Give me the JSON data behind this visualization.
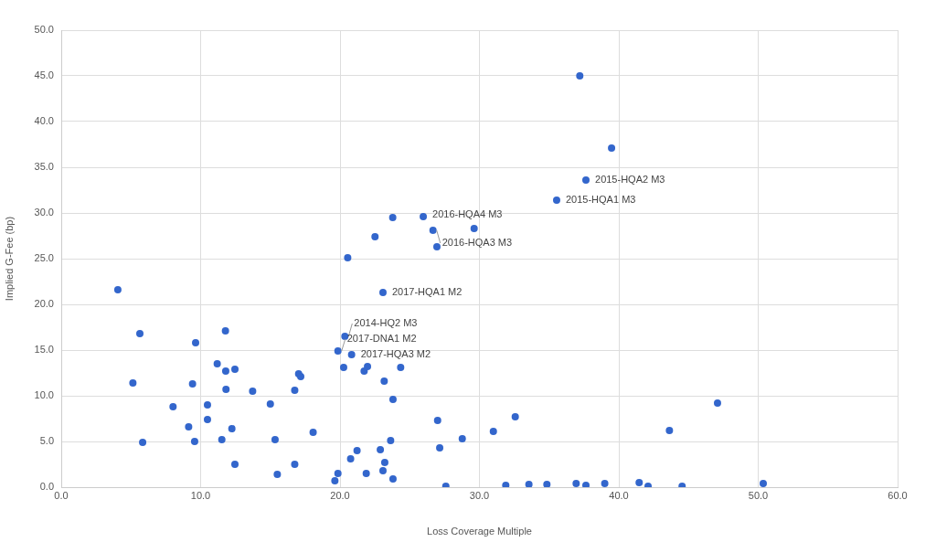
{
  "chart_data": {
    "type": "scatter",
    "xlabel": "Loss Coverage Multiple",
    "ylabel": "Implied G-Fee (bp)",
    "xlim": [
      0,
      60
    ],
    "ylim": [
      0,
      50
    ],
    "xticks": [
      {
        "value": 0,
        "label": "0.0"
      },
      {
        "value": 10,
        "label": "10.0"
      },
      {
        "value": 20,
        "label": "20.0"
      },
      {
        "value": 30,
        "label": "30.0"
      },
      {
        "value": 40,
        "label": "40.0"
      },
      {
        "value": 50,
        "label": "50.0"
      },
      {
        "value": 60,
        "label": "60.0"
      }
    ],
    "yticks": [
      {
        "value": 0,
        "label": "0.0"
      },
      {
        "value": 5,
        "label": "5.0"
      },
      {
        "value": 10,
        "label": "10.0"
      },
      {
        "value": 15,
        "label": "15.0"
      },
      {
        "value": 20,
        "label": "20.0"
      },
      {
        "value": 25,
        "label": "25.0"
      },
      {
        "value": 30,
        "label": "30.0"
      },
      {
        "value": 35,
        "label": "35.0"
      },
      {
        "value": 40,
        "label": "40.0"
      },
      {
        "value": 45,
        "label": "45.0"
      },
      {
        "value": 50,
        "label": "50.0"
      }
    ],
    "grid": true,
    "legend": false,
    "marker": "circle",
    "series": [
      {
        "color": "#3366cc",
        "x": [
          4.06,
          5.64,
          11.78,
          9.64,
          11.19,
          11.8,
          12.46,
          17.03,
          17.18,
          5.14,
          9.42,
          11.82,
          13.73,
          16.75,
          8.02,
          10.49,
          15.0,
          10.49,
          9.14,
          12.24,
          18.07,
          5.84,
          9.57,
          11.52,
          15.34,
          12.46,
          16.75,
          15.5,
          20.35,
          19.85,
          20.83,
          20.26,
          21.73,
          21.97,
          24.35,
          23.17,
          23.8,
          27.0,
          31.0,
          32.57,
          28.77,
          27.15,
          23.63,
          21.22,
          22.89,
          20.76,
          23.21,
          19.85,
          21.88,
          23.08,
          19.63,
          23.8,
          27.59,
          31.89,
          33.55,
          34.84,
          36.94,
          37.64,
          38.99,
          41.46,
          42.1,
          43.63,
          44.54,
          47.08,
          50.36,
          39.48,
          37.64,
          35.54,
          23.78,
          25.97,
          22.51,
          26.67,
          26.95,
          29.62,
          20.55,
          23.08,
          37.2
        ],
        "values": [
          21.6,
          16.8,
          17.1,
          15.8,
          13.5,
          12.7,
          12.9,
          12.4,
          12.1,
          11.4,
          11.3,
          10.7,
          10.5,
          10.6,
          8.8,
          9.0,
          9.1,
          7.4,
          6.6,
          6.4,
          6.0,
          4.9,
          5.0,
          5.2,
          5.2,
          2.5,
          2.5,
          1.4,
          16.5,
          14.9,
          14.5,
          13.1,
          12.7,
          13.2,
          13.1,
          11.6,
          9.6,
          7.3,
          6.1,
          7.7,
          5.3,
          4.3,
          5.1,
          4.0,
          4.1,
          3.1,
          2.7,
          1.5,
          1.5,
          1.8,
          0.7,
          0.9,
          0.1,
          0.2,
          0.3,
          0.3,
          0.4,
          0.2,
          0.4,
          0.5,
          0.1,
          6.2,
          0.1,
          9.2,
          0.4,
          37.1,
          33.6,
          31.4,
          29.5,
          29.6,
          27.4,
          28.1,
          26.3,
          28.3,
          25.1,
          21.3,
          45.0
        ]
      }
    ],
    "annotations": [
      {
        "text": "2015-HQA2 M3",
        "x": 37.64,
        "y": 33.6
      },
      {
        "text": "2015-HQA1 M3",
        "x": 35.54,
        "y": 31.4
      },
      {
        "text": "2016-HQA4 M3",
        "x": 25.97,
        "y": 29.6
      },
      {
        "text": "2016-HQA3 M3",
        "x": 26.67,
        "y": 28.1
      },
      {
        "text": "2017-HQA1 M2",
        "x": 23.08,
        "y": 21.3
      },
      {
        "text": "2014-HQ2 M3",
        "x": 20.35,
        "y": 16.5
      },
      {
        "text": "2017-DNA1 M2",
        "x": 19.85,
        "y": 14.9
      },
      {
        "text": "2017-HQA3 M2",
        "x": 20.83,
        "y": 14.5
      }
    ]
  }
}
